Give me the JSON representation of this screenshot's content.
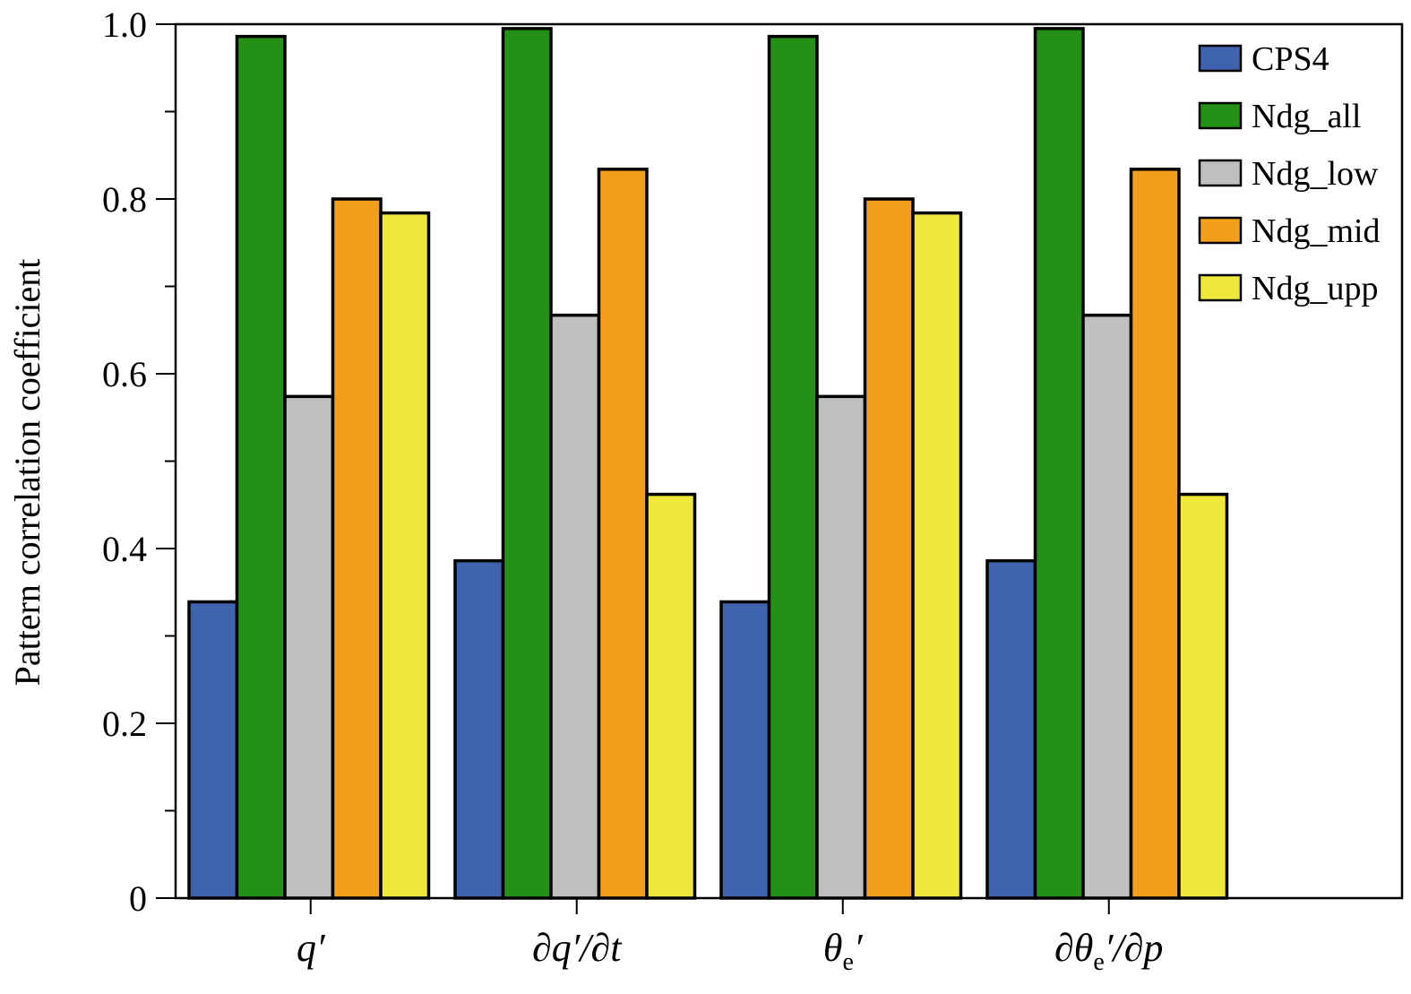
{
  "chart_data": {
    "type": "bar",
    "title": "",
    "xlabel": "",
    "ylabel": "Pattern correlation coefficient",
    "ylim": [
      0,
      1.0
    ],
    "yticks": [
      "0",
      "0.2",
      "0.4",
      "0.6",
      "0.8",
      "1.0"
    ],
    "categories": [
      [
        {
          "t": "q′"
        }
      ],
      [
        {
          "t": "∂q′/∂t"
        }
      ],
      [
        {
          "t": "θ"
        },
        {
          "t": "e",
          "sub": true
        },
        {
          "t": "′"
        }
      ],
      [
        {
          "t": "∂θ"
        },
        {
          "t": "e",
          "sub": true
        },
        {
          "t": "′/∂p"
        }
      ]
    ],
    "series": [
      {
        "name": "CPS4",
        "color": "#3f63ad",
        "values": [
          0.339,
          0.386,
          0.339,
          0.386
        ]
      },
      {
        "name": "Ndg_all",
        "color": "#249015",
        "values": [
          0.986,
          0.995,
          0.986,
          0.995
        ]
      },
      {
        "name": "Ndg_low",
        "color": "#c0c0c0",
        "values": [
          0.574,
          0.667,
          0.574,
          0.667
        ]
      },
      {
        "name": "Ndg_mid",
        "color": "#f2a01c",
        "values": [
          0.8,
          0.834,
          0.8,
          0.834
        ]
      },
      {
        "name": "Ndg_upp",
        "color": "#efe83a",
        "values": [
          0.784,
          0.462,
          0.784,
          0.462
        ]
      }
    ],
    "grid": false,
    "legend_position": "top-right"
  }
}
